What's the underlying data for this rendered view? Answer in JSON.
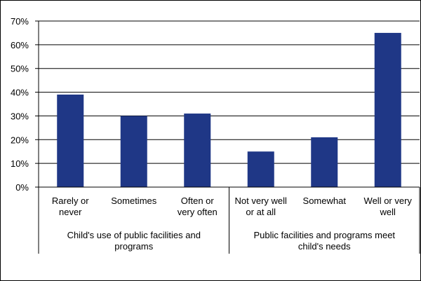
{
  "chart_data": {
    "type": "bar",
    "title": "",
    "xlabel": "",
    "ylabel": "",
    "ylim": [
      0,
      0.7
    ],
    "y_ticks": [
      "0%",
      "10%",
      "20%",
      "30%",
      "40%",
      "50%",
      "60%",
      "70%"
    ],
    "grid": "horizontal",
    "legend": "none",
    "bar_color": "#1f3786",
    "categories": [
      [
        "Rarely or",
        "never"
      ],
      [
        "Sometimes"
      ],
      [
        "Often or",
        "very often"
      ],
      [
        "Not very well",
        "or at all"
      ],
      [
        "Somewhat"
      ],
      [
        "Well or very",
        "well"
      ]
    ],
    "values": [
      0.39,
      0.3,
      0.31,
      0.15,
      0.21,
      0.65
    ],
    "groups": [
      {
        "label": [
          "Child's use of public facilities and",
          "programs"
        ],
        "count": 3
      },
      {
        "label": [
          "Public facilities and programs meet",
          "child's needs"
        ],
        "count": 3
      }
    ]
  }
}
